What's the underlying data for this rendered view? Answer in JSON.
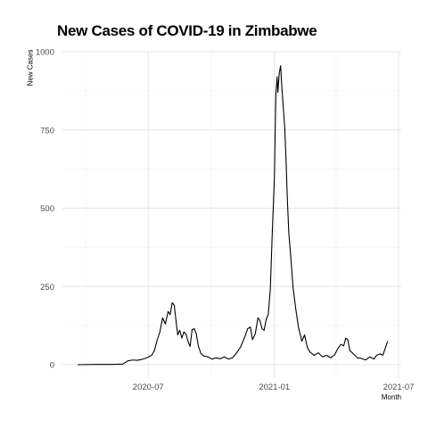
{
  "chart_data": {
    "type": "line",
    "title": "New Cases of COVID-19 in Zimbabwe",
    "xlabel": "Month",
    "ylabel": "New Cases",
    "xlim": [
      "2020-03-20",
      "2021-07-01"
    ],
    "ylim": [
      0,
      1000
    ],
    "x_ticks": [
      {
        "date": "2020-07-01",
        "label": "2020-07"
      },
      {
        "date": "2021-01-01",
        "label": "2021-01"
      },
      {
        "date": "2021-07-01",
        "label": "2021-07"
      }
    ],
    "x_minor_ticks": [
      "2020-04-01",
      "2020-10-01",
      "2021-04-01"
    ],
    "y_ticks": [
      0,
      250,
      500,
      750,
      1000
    ],
    "y_tick_labels": [
      "0",
      "250",
      "500",
      "750",
      "1000"
    ],
    "grid": true,
    "line_color": "#000000",
    "series": [
      {
        "name": "",
        "points": [
          [
            "2020-03-20",
            0
          ],
          [
            "2020-04-15",
            1
          ],
          [
            "2020-05-10",
            1
          ],
          [
            "2020-05-25",
            2
          ],
          [
            "2020-06-01",
            12
          ],
          [
            "2020-06-08",
            15
          ],
          [
            "2020-06-15",
            14
          ],
          [
            "2020-06-22",
            17
          ],
          [
            "2020-06-29",
            22
          ],
          [
            "2020-07-06",
            30
          ],
          [
            "2020-07-10",
            45
          ],
          [
            "2020-07-14",
            78
          ],
          [
            "2020-07-18",
            105
          ],
          [
            "2020-07-22",
            150
          ],
          [
            "2020-07-26",
            130
          ],
          [
            "2020-07-30",
            170
          ],
          [
            "2020-08-02",
            160
          ],
          [
            "2020-08-05",
            198
          ],
          [
            "2020-08-08",
            190
          ],
          [
            "2020-08-10",
            150
          ],
          [
            "2020-08-13",
            95
          ],
          [
            "2020-08-16",
            110
          ],
          [
            "2020-08-19",
            85
          ],
          [
            "2020-08-22",
            105
          ],
          [
            "2020-08-25",
            98
          ],
          [
            "2020-08-28",
            75
          ],
          [
            "2020-08-31",
            58
          ],
          [
            "2020-09-03",
            112
          ],
          [
            "2020-09-06",
            115
          ],
          [
            "2020-09-09",
            100
          ],
          [
            "2020-09-12",
            60
          ],
          [
            "2020-09-16",
            35
          ],
          [
            "2020-09-20",
            28
          ],
          [
            "2020-09-26",
            25
          ],
          [
            "2020-10-02",
            18
          ],
          [
            "2020-10-08",
            22
          ],
          [
            "2020-10-14",
            19
          ],
          [
            "2020-10-20",
            25
          ],
          [
            "2020-10-26",
            18
          ],
          [
            "2020-11-01",
            22
          ],
          [
            "2020-11-07",
            38
          ],
          [
            "2020-11-13",
            58
          ],
          [
            "2020-11-19",
            90
          ],
          [
            "2020-11-23",
            115
          ],
          [
            "2020-11-27",
            120
          ],
          [
            "2020-11-30",
            80
          ],
          [
            "2020-12-04",
            98
          ],
          [
            "2020-12-08",
            150
          ],
          [
            "2020-12-11",
            140
          ],
          [
            "2020-12-14",
            115
          ],
          [
            "2020-12-17",
            110
          ],
          [
            "2020-12-20",
            145
          ],
          [
            "2020-12-23",
            160
          ],
          [
            "2020-12-26",
            240
          ],
          [
            "2020-12-29",
            430
          ],
          [
            "2021-01-01",
            600
          ],
          [
            "2021-01-03",
            860
          ],
          [
            "2021-01-05",
            920
          ],
          [
            "2021-01-06",
            870
          ],
          [
            "2021-01-08",
            930
          ],
          [
            "2021-01-10",
            955
          ],
          [
            "2021-01-12",
            880
          ],
          [
            "2021-01-14",
            820
          ],
          [
            "2021-01-16",
            760
          ],
          [
            "2021-01-18",
            650
          ],
          [
            "2021-01-20",
            520
          ],
          [
            "2021-01-22",
            420
          ],
          [
            "2021-01-25",
            340
          ],
          [
            "2021-01-28",
            250
          ],
          [
            "2021-02-01",
            180
          ],
          [
            "2021-02-05",
            120
          ],
          [
            "2021-02-10",
            75
          ],
          [
            "2021-02-14",
            95
          ],
          [
            "2021-02-18",
            55
          ],
          [
            "2021-02-22",
            40
          ],
          [
            "2021-02-28",
            30
          ],
          [
            "2021-03-06",
            38
          ],
          [
            "2021-03-12",
            25
          ],
          [
            "2021-03-18",
            30
          ],
          [
            "2021-03-24",
            22
          ],
          [
            "2021-03-30",
            32
          ],
          [
            "2021-04-03",
            50
          ],
          [
            "2021-04-08",
            65
          ],
          [
            "2021-04-12",
            60
          ],
          [
            "2021-04-15",
            85
          ],
          [
            "2021-04-18",
            80
          ],
          [
            "2021-04-21",
            45
          ],
          [
            "2021-04-26",
            35
          ],
          [
            "2021-05-02",
            22
          ],
          [
            "2021-05-08",
            20
          ],
          [
            "2021-05-14",
            15
          ],
          [
            "2021-05-20",
            25
          ],
          [
            "2021-05-26",
            18
          ],
          [
            "2021-05-30",
            30
          ],
          [
            "2021-06-04",
            35
          ],
          [
            "2021-06-08",
            30
          ],
          [
            "2021-06-12",
            55
          ],
          [
            "2021-06-15",
            75
          ]
        ]
      }
    ]
  }
}
